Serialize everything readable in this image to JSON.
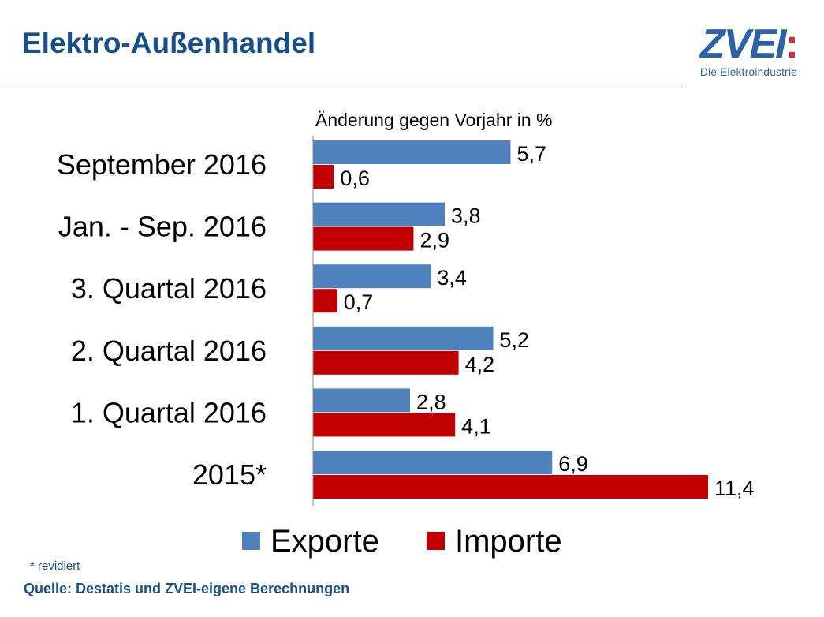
{
  "header": {
    "title": "Elektro-Außenhandel"
  },
  "logo": {
    "text": "ZVEI:",
    "subtitle": "Die Elektroindustrie"
  },
  "chart_data": {
    "type": "bar",
    "orientation": "horizontal",
    "subtitle": "Änderung gegen Vorjahr in %",
    "categories": [
      "September 2016",
      "Jan. - Sep. 2016",
      "3. Quartal 2016",
      "2. Quartal 2016",
      "1. Quartal 2016",
      "2015*"
    ],
    "series": [
      {
        "name": "Exporte",
        "color": "#4f81bd",
        "values": [
          5.7,
          3.8,
          3.4,
          5.2,
          2.8,
          6.9
        ],
        "labels": [
          "5,7",
          "3,8",
          "3,4",
          "5,2",
          "2,8",
          "6,9"
        ]
      },
      {
        "name": "Importe",
        "color": "#c00000",
        "values": [
          0.6,
          2.9,
          0.7,
          4.2,
          4.1,
          11.4
        ],
        "labels": [
          "0,6",
          "2,9",
          "0,7",
          "4,2",
          "4,1",
          "11,4"
        ]
      }
    ],
    "xlim": [
      0,
      11.4
    ],
    "grid": false,
    "legend": "bottom"
  },
  "footer": {
    "note": "* revidiert",
    "source": "Quelle: Destatis und ZVEI-eigene Berechnungen"
  }
}
